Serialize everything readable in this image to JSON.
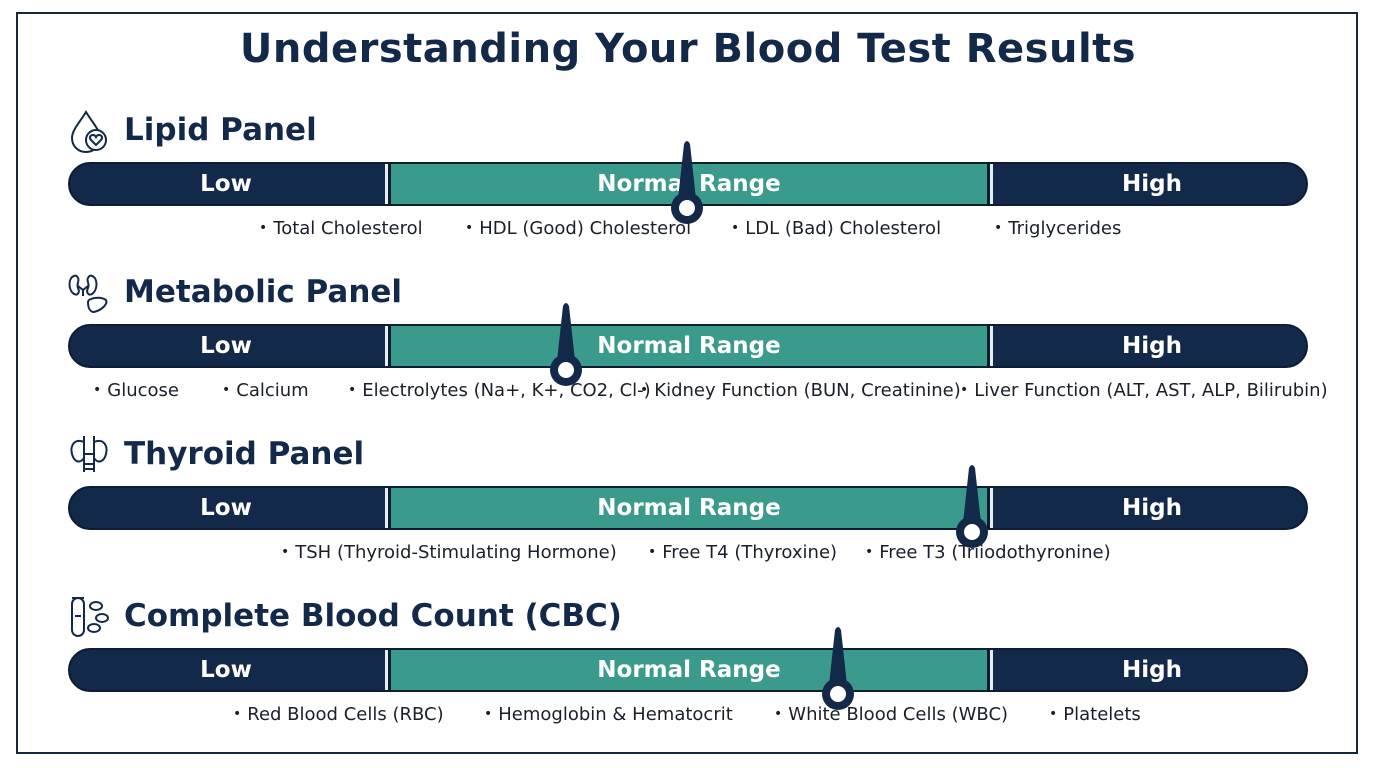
{
  "title": "Understanding Your Blood Test Results",
  "colors": {
    "dark": "#13294a",
    "normal": "#3a9b8c",
    "background": "#ffffff"
  },
  "scale_labels": {
    "low": "Low",
    "normal": "Normal Range",
    "high": "High"
  },
  "panels": [
    {
      "title": "Lipid Panel",
      "icon": "blood-drop-heart-icon",
      "marker_position": 0.5,
      "items": [
        "Total Cholesterol",
        "HDL (Good) Cholesterol",
        "LDL (Bad) Cholesterol",
        "Triglycerides"
      ]
    },
    {
      "title": "Metabolic Panel",
      "icon": "kidney-liver-icon",
      "marker_position": 0.4,
      "items": [
        "Glucose",
        "Calcium",
        "Electrolytes (Na+, K+, CO2, Cl-)",
        "Kidney Function (BUN, Creatinine)",
        "Liver Function (ALT, AST, ALP, Bilirubin)"
      ]
    },
    {
      "title": "Thyroid Panel",
      "icon": "thyroid-icon",
      "marker_position": 0.73,
      "items": [
        "TSH (Thyroid-Stimulating Hormone)",
        "Free T4 (Thyroxine)",
        "Free T3 (Triiodothyronine)"
      ]
    },
    {
      "title": "Complete Blood Count (CBC)",
      "icon": "test-tube-cells-icon",
      "marker_position": 0.62,
      "items": [
        "Red Blood Cells (RBC)",
        "Hemoglobin & Hematocrit",
        "White Blood Cells (WBC)",
        "Platelets"
      ]
    }
  ]
}
